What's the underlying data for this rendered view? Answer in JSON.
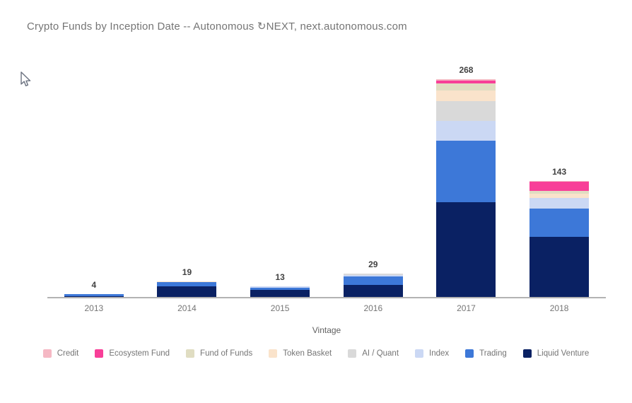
{
  "title": "Crypto Funds by Inception Date -- Autonomous ↻NEXT, next.autonomous.com",
  "xlabel": "Vintage",
  "chart_data": {
    "type": "bar",
    "stacked": true,
    "title": "Crypto Funds by Inception Date -- Autonomous NEXT, next.autonomous.com",
    "xlabel": "Vintage",
    "ylabel": "",
    "ylim": [
      0,
      280
    ],
    "grid": false,
    "legend_position": "bottom",
    "categories": [
      "2013",
      "2014",
      "2015",
      "2016",
      "2017",
      "2018"
    ],
    "totals": [
      4,
      19,
      13,
      29,
      268,
      143
    ],
    "series": [
      {
        "name": "Liquid Venture",
        "color": "#0a2163",
        "values": [
          1,
          13,
          9,
          15,
          117,
          74
        ]
      },
      {
        "name": "Trading",
        "color": "#3d78d8",
        "values": [
          3,
          5,
          2,
          10,
          75,
          35
        ]
      },
      {
        "name": "Index",
        "color": "#cbd8f4",
        "values": [
          0,
          0,
          2,
          2,
          25,
          13
        ]
      },
      {
        "name": "AI / Quant",
        "color": "#d9d9d9",
        "values": [
          0,
          0,
          0,
          2,
          24,
          0
        ]
      },
      {
        "name": "Token Basket",
        "color": "#fae3cb",
        "values": [
          0,
          1,
          0,
          0,
          13,
          5
        ]
      },
      {
        "name": "Fund of Funds",
        "color": "#e0ddc2",
        "values": [
          0,
          0,
          0,
          0,
          9,
          4
        ]
      },
      {
        "name": "Ecosystem Fund",
        "color": "#f83f98",
        "values": [
          0,
          0,
          0,
          0,
          3,
          11
        ]
      },
      {
        "name": "Credit",
        "color": "#f5b8c4",
        "values": [
          0,
          0,
          0,
          0,
          2,
          1
        ]
      }
    ],
    "legend_order": [
      "Credit",
      "Ecosystem Fund",
      "Fund of Funds",
      "Token Basket",
      "AI / Quant",
      "Index",
      "Trading",
      "Liquid Venture"
    ]
  },
  "cursor": {
    "name": "mouse-pointer"
  }
}
